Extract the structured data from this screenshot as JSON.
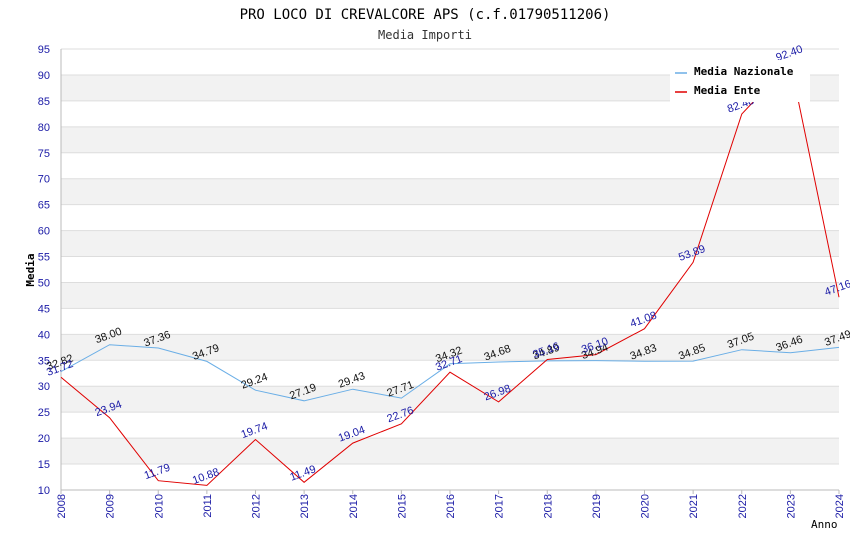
{
  "chart_data": {
    "type": "line",
    "title": "PRO LOCO DI CREVALCORE APS (c.f.01790511206)",
    "subtitle": "Media Importi",
    "xlabel": "Anno",
    "ylabel": "Media",
    "ylim": [
      10,
      95
    ],
    "yticks": [
      10,
      15,
      20,
      25,
      30,
      35,
      40,
      45,
      50,
      55,
      60,
      65,
      70,
      75,
      80,
      85,
      90,
      95
    ],
    "categories": [
      "2008",
      "2009",
      "2010",
      "2011",
      "2012",
      "2013",
      "2014",
      "2015",
      "2016",
      "2017",
      "2018",
      "2019",
      "2020",
      "2021",
      "2022",
      "2023",
      "2024"
    ],
    "legend_position": "top-right",
    "series": [
      {
        "name": "Media Nazionale",
        "color": "#6aaee6",
        "values": [
          32.82,
          38.0,
          37.36,
          34.79,
          29.24,
          27.19,
          29.43,
          27.71,
          34.32,
          34.68,
          34.89,
          34.94,
          34.83,
          34.85,
          37.05,
          36.46,
          37.49
        ],
        "labels": [
          "32.82",
          "38.00",
          "37.36",
          "34.79",
          "29.24",
          "27.19",
          "29.43",
          "27.71",
          "34.32",
          "34.68",
          "34.89",
          "34.94",
          "34.83",
          "34.85",
          "37.05",
          "36.46",
          "37.49"
        ]
      },
      {
        "name": "Media Ente",
        "color": "#e00000",
        "values": [
          31.72,
          23.94,
          11.79,
          10.88,
          19.74,
          11.49,
          19.04,
          22.76,
          32.71,
          26.98,
          35.16,
          36.1,
          41.08,
          53.89,
          82.48,
          92.4,
          47.16
        ],
        "labels": [
          "31.72",
          "23.94",
          "11.79",
          "10.88",
          "19.74",
          "11.49",
          "19.04",
          "22.76",
          "32.71",
          "26.98",
          "35.16",
          "36.10",
          "41.08",
          "53.89",
          "82.48",
          "92.40",
          "47.16"
        ]
      }
    ]
  }
}
